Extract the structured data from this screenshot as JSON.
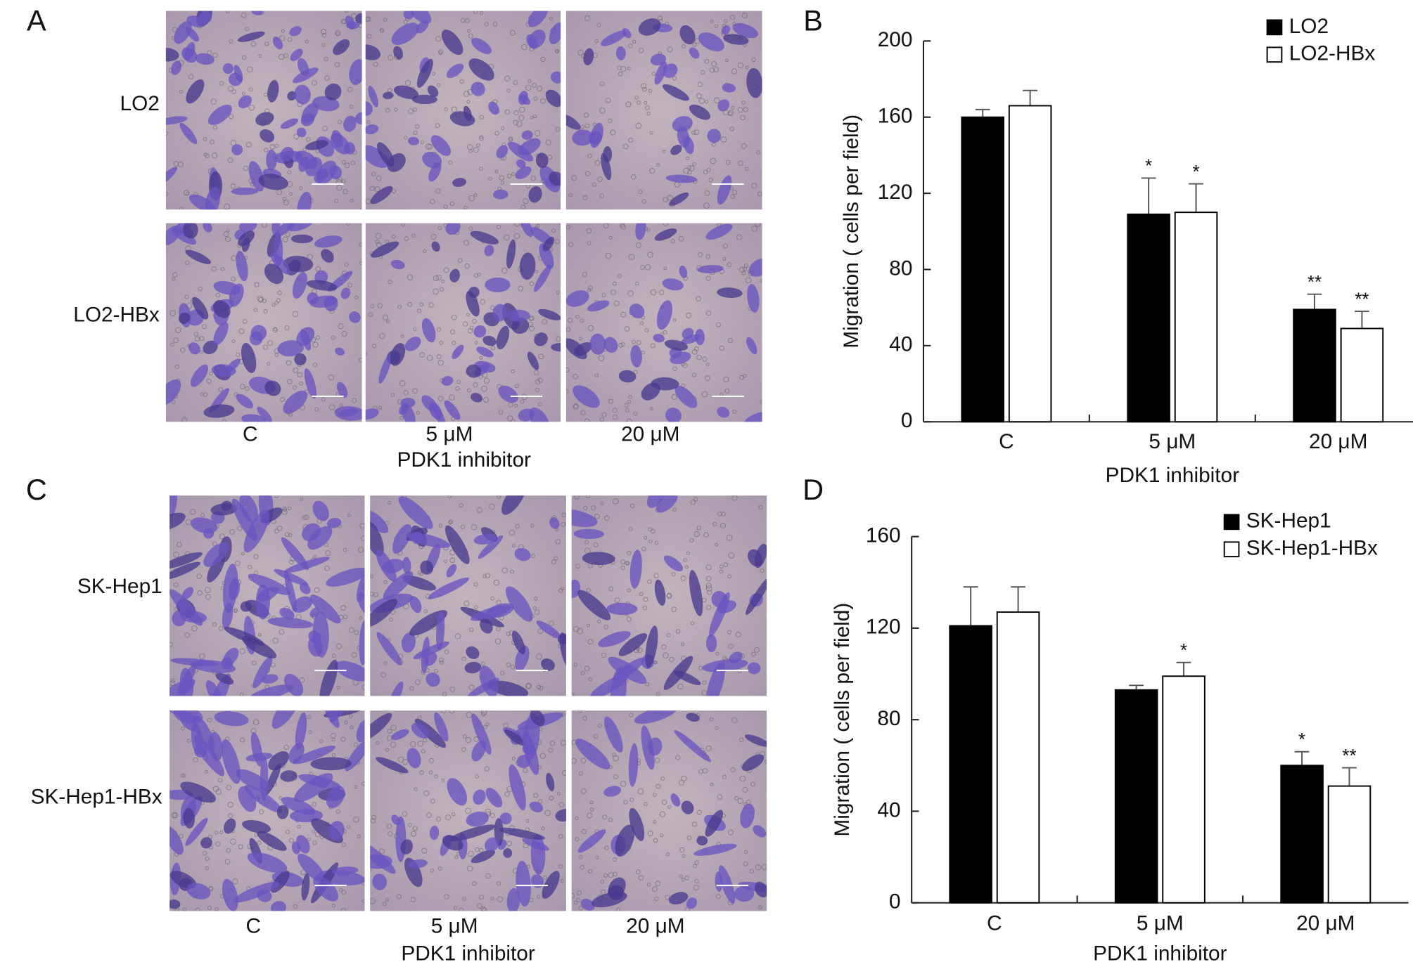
{
  "panel_labels": [
    "A",
    "B",
    "C",
    "D"
  ],
  "micrographs": [
    {
      "rows": [
        "LO2",
        "LO2-HBx"
      ],
      "columns": [
        "C",
        "5 μM",
        "20 μM"
      ],
      "xlabel": "PDK1 inhibitor"
    },
    {
      "rows": [
        "SK-Hep1",
        "SK-Hep1-HBx"
      ],
      "columns": [
        "C",
        "5 μM",
        "20 μM"
      ],
      "xlabel": "PDK1 inhibitor"
    }
  ],
  "chart_data": [
    {
      "type": "bar",
      "ylabel": "Migration ( cells per field)",
      "xlabel": "PDK1 inhibitor",
      "categories": [
        "C",
        "5 μM",
        "20 μM"
      ],
      "ylim": [
        0,
        200
      ],
      "yticks": [
        0,
        40,
        80,
        120,
        160,
        200
      ],
      "legend": "top-right",
      "series": [
        {
          "name": "LO2",
          "color": "#000000",
          "values": [
            160,
            109,
            59
          ],
          "errors": [
            4,
            19,
            8
          ],
          "significance": [
            null,
            "*",
            "**"
          ]
        },
        {
          "name": "LO2-HBx",
          "color": "#ffffff",
          "values": [
            166,
            110,
            49
          ],
          "errors": [
            8,
            15,
            9
          ],
          "significance": [
            null,
            "*",
            "**"
          ]
        }
      ]
    },
    {
      "type": "bar",
      "ylabel": "Migration ( cells per field)",
      "xlabel": "PDK1 inhibitor",
      "categories": [
        "C",
        "5 μM",
        "20 μM"
      ],
      "ylim": [
        0,
        160
      ],
      "yticks": [
        0,
        40,
        80,
        120,
        160
      ],
      "legend": "top-right",
      "series": [
        {
          "name": "SK-Hep1",
          "color": "#000000",
          "values": [
            121,
            93,
            60
          ],
          "errors": [
            17,
            2,
            6
          ],
          "significance": [
            null,
            null,
            "*"
          ]
        },
        {
          "name": "SK-Hep1-HBx",
          "color": "#ffffff",
          "values": [
            127,
            99,
            51
          ],
          "errors": [
            11,
            6,
            8
          ],
          "significance": [
            null,
            "*",
            "**"
          ]
        }
      ]
    }
  ]
}
